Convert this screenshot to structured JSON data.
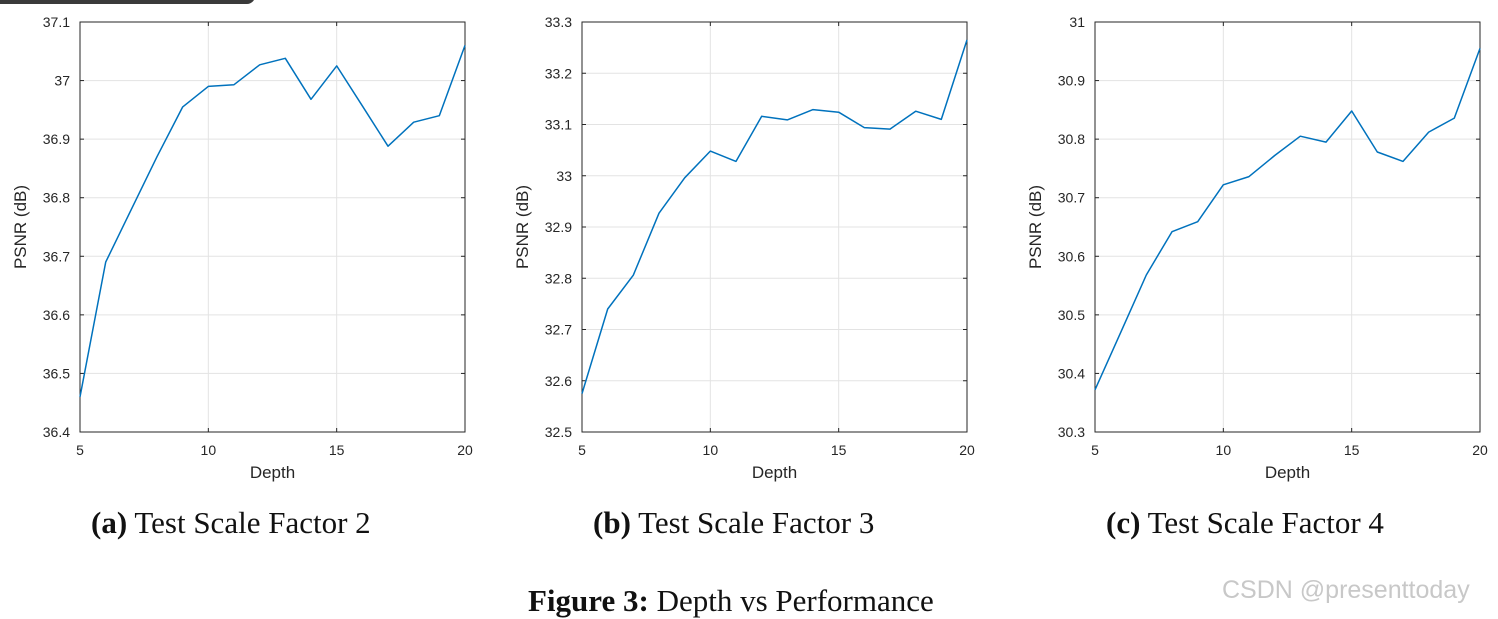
{
  "figure": {
    "caption_label": "Figure 3:",
    "caption_text": "Depth vs Performance"
  },
  "watermark": "CSDN @presenttoday",
  "colors": {
    "line": "#0072bd",
    "grid": "#e3e3e3",
    "axis": "#262626"
  },
  "chart_data": [
    {
      "type": "line",
      "subcaption_label": "(a)",
      "subcaption_text": "Test Scale Factor 2",
      "xlabel": "Depth",
      "ylabel": "PSNR (dB)",
      "xlim": [
        5,
        20
      ],
      "ylim": [
        36.4,
        37.1
      ],
      "xticks": [
        5,
        10,
        15,
        20
      ],
      "yticks": [
        36.4,
        36.5,
        36.6,
        36.7,
        36.8,
        36.9,
        37,
        37.1
      ],
      "ytick_labels": [
        "36.4",
        "36.5",
        "36.6",
        "36.7",
        "36.8",
        "36.9",
        "37",
        "37.1"
      ],
      "grid": true,
      "x": [
        5,
        6,
        7,
        8,
        9,
        10,
        11,
        12,
        13,
        14,
        15,
        16,
        17,
        18,
        19,
        20
      ],
      "y": [
        36.46,
        36.69,
        36.78,
        36.87,
        36.955,
        36.99,
        36.993,
        37.027,
        37.038,
        36.968,
        37.025,
        36.957,
        36.888,
        36.929,
        36.94,
        37.06
      ]
    },
    {
      "type": "line",
      "subcaption_label": "(b)",
      "subcaption_text": "Test Scale Factor 3",
      "xlabel": "Depth",
      "ylabel": "PSNR (dB)",
      "xlim": [
        5,
        20
      ],
      "ylim": [
        32.5,
        33.3
      ],
      "xticks": [
        5,
        10,
        15,
        20
      ],
      "yticks": [
        32.5,
        32.6,
        32.7,
        32.8,
        32.9,
        33,
        33.1,
        33.2,
        33.3
      ],
      "ytick_labels": [
        "32.5",
        "32.6",
        "32.7",
        "32.8",
        "32.9",
        "33",
        "33.1",
        "33.2",
        "33.3"
      ],
      "grid": true,
      "x": [
        5,
        6,
        7,
        8,
        9,
        10,
        11,
        12,
        13,
        14,
        15,
        16,
        17,
        18,
        19,
        20
      ],
      "y": [
        32.575,
        32.74,
        32.806,
        32.927,
        32.996,
        33.048,
        33.028,
        33.116,
        33.109,
        33.129,
        33.124,
        33.094,
        33.091,
        33.126,
        33.11,
        33.265
      ]
    },
    {
      "type": "line",
      "subcaption_label": "(c)",
      "subcaption_text": "Test Scale Factor 4",
      "xlabel": "Depth",
      "ylabel": "PSNR (dB)",
      "xlim": [
        5,
        20
      ],
      "ylim": [
        30.3,
        31
      ],
      "xticks": [
        5,
        10,
        15,
        20
      ],
      "yticks": [
        30.3,
        30.4,
        30.5,
        30.6,
        30.7,
        30.8,
        30.9,
        31
      ],
      "ytick_labels": [
        "30.3",
        "30.4",
        "30.5",
        "30.6",
        "30.7",
        "30.8",
        "30.9",
        "31"
      ],
      "grid": true,
      "x": [
        5,
        6,
        7,
        8,
        9,
        10,
        11,
        12,
        13,
        14,
        15,
        16,
        17,
        18,
        19,
        20
      ],
      "y": [
        30.372,
        30.47,
        30.568,
        30.642,
        30.659,
        30.722,
        30.736,
        30.772,
        30.805,
        30.795,
        30.848,
        30.778,
        30.762,
        30.812,
        30.836,
        30.955
      ]
    }
  ]
}
